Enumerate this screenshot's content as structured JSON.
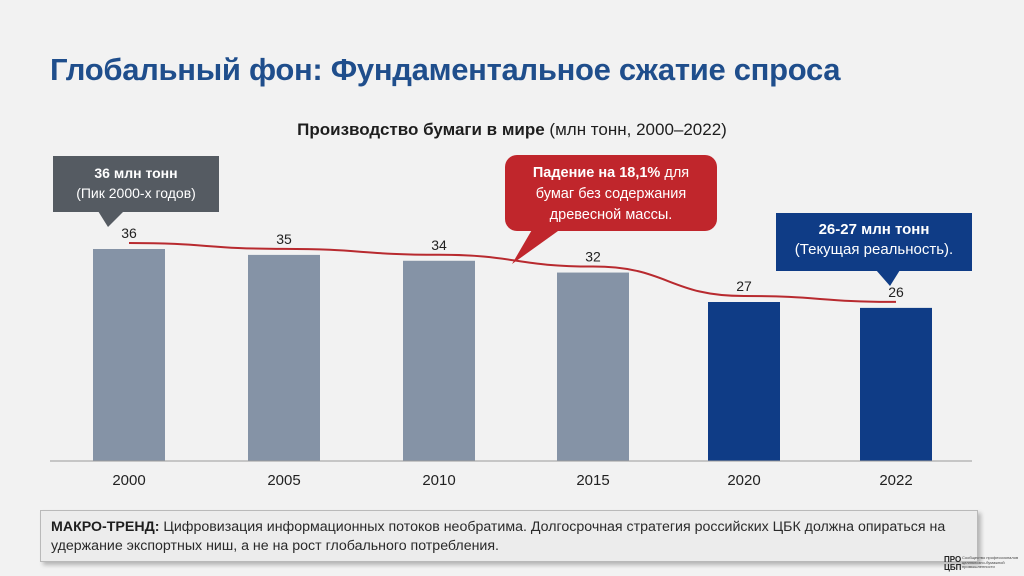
{
  "slide": {
    "title": "Глобальный фон: Фундаментальное сжатие спроса",
    "chart_title_bold": "Производство бумаги в мире",
    "chart_title_rest": " (млн тонн, 2000–2022)"
  },
  "callouts": {
    "peak": {
      "line1": "36 млн тонн",
      "line2": "(Пик 2000-х годов)"
    },
    "drop": {
      "bold": "Падение на 18,1%",
      "rest1": " для",
      "line2": "бумаг без содержания",
      "line3": "древесной массы."
    },
    "current": {
      "line1": "26-27 млн тонн",
      "line2": "(Текущая реальность)."
    }
  },
  "footer": {
    "label": "МАКРО-ТРЕНД:",
    "text": " Цифровизация информационных потоков необратима. Долгосрочная стратегия российских ЦБК должна опираться на удержание экспортных ниш, а не на рост глобального потребления."
  },
  "logo": {
    "mark_top": "ПРО",
    "mark_bottom": "ЦБП",
    "text": "Сообщество профессионалов целлюлозно-бумажной промышленности"
  },
  "colors": {
    "title": "#1f4e8c",
    "bar_gray": "#8593a6",
    "bar_blue": "#0f3c86",
    "line_red": "#b82a2f",
    "callout_gray": "#555b62",
    "callout_red": "#c0262c",
    "callout_blue": "#0f3c86"
  },
  "chart_data": {
    "type": "bar",
    "categories": [
      "2000",
      "2005",
      "2010",
      "2015",
      "2020",
      "2022"
    ],
    "values": [
      36,
      35,
      34,
      32,
      27,
      26
    ],
    "highlight": [
      false,
      false,
      false,
      false,
      true,
      true
    ],
    "overlay_line": true,
    "title": "Производство бумаги в мире (млн тонн, 2000–2022)",
    "ylim": [
      0,
      36
    ],
    "grid": false
  }
}
